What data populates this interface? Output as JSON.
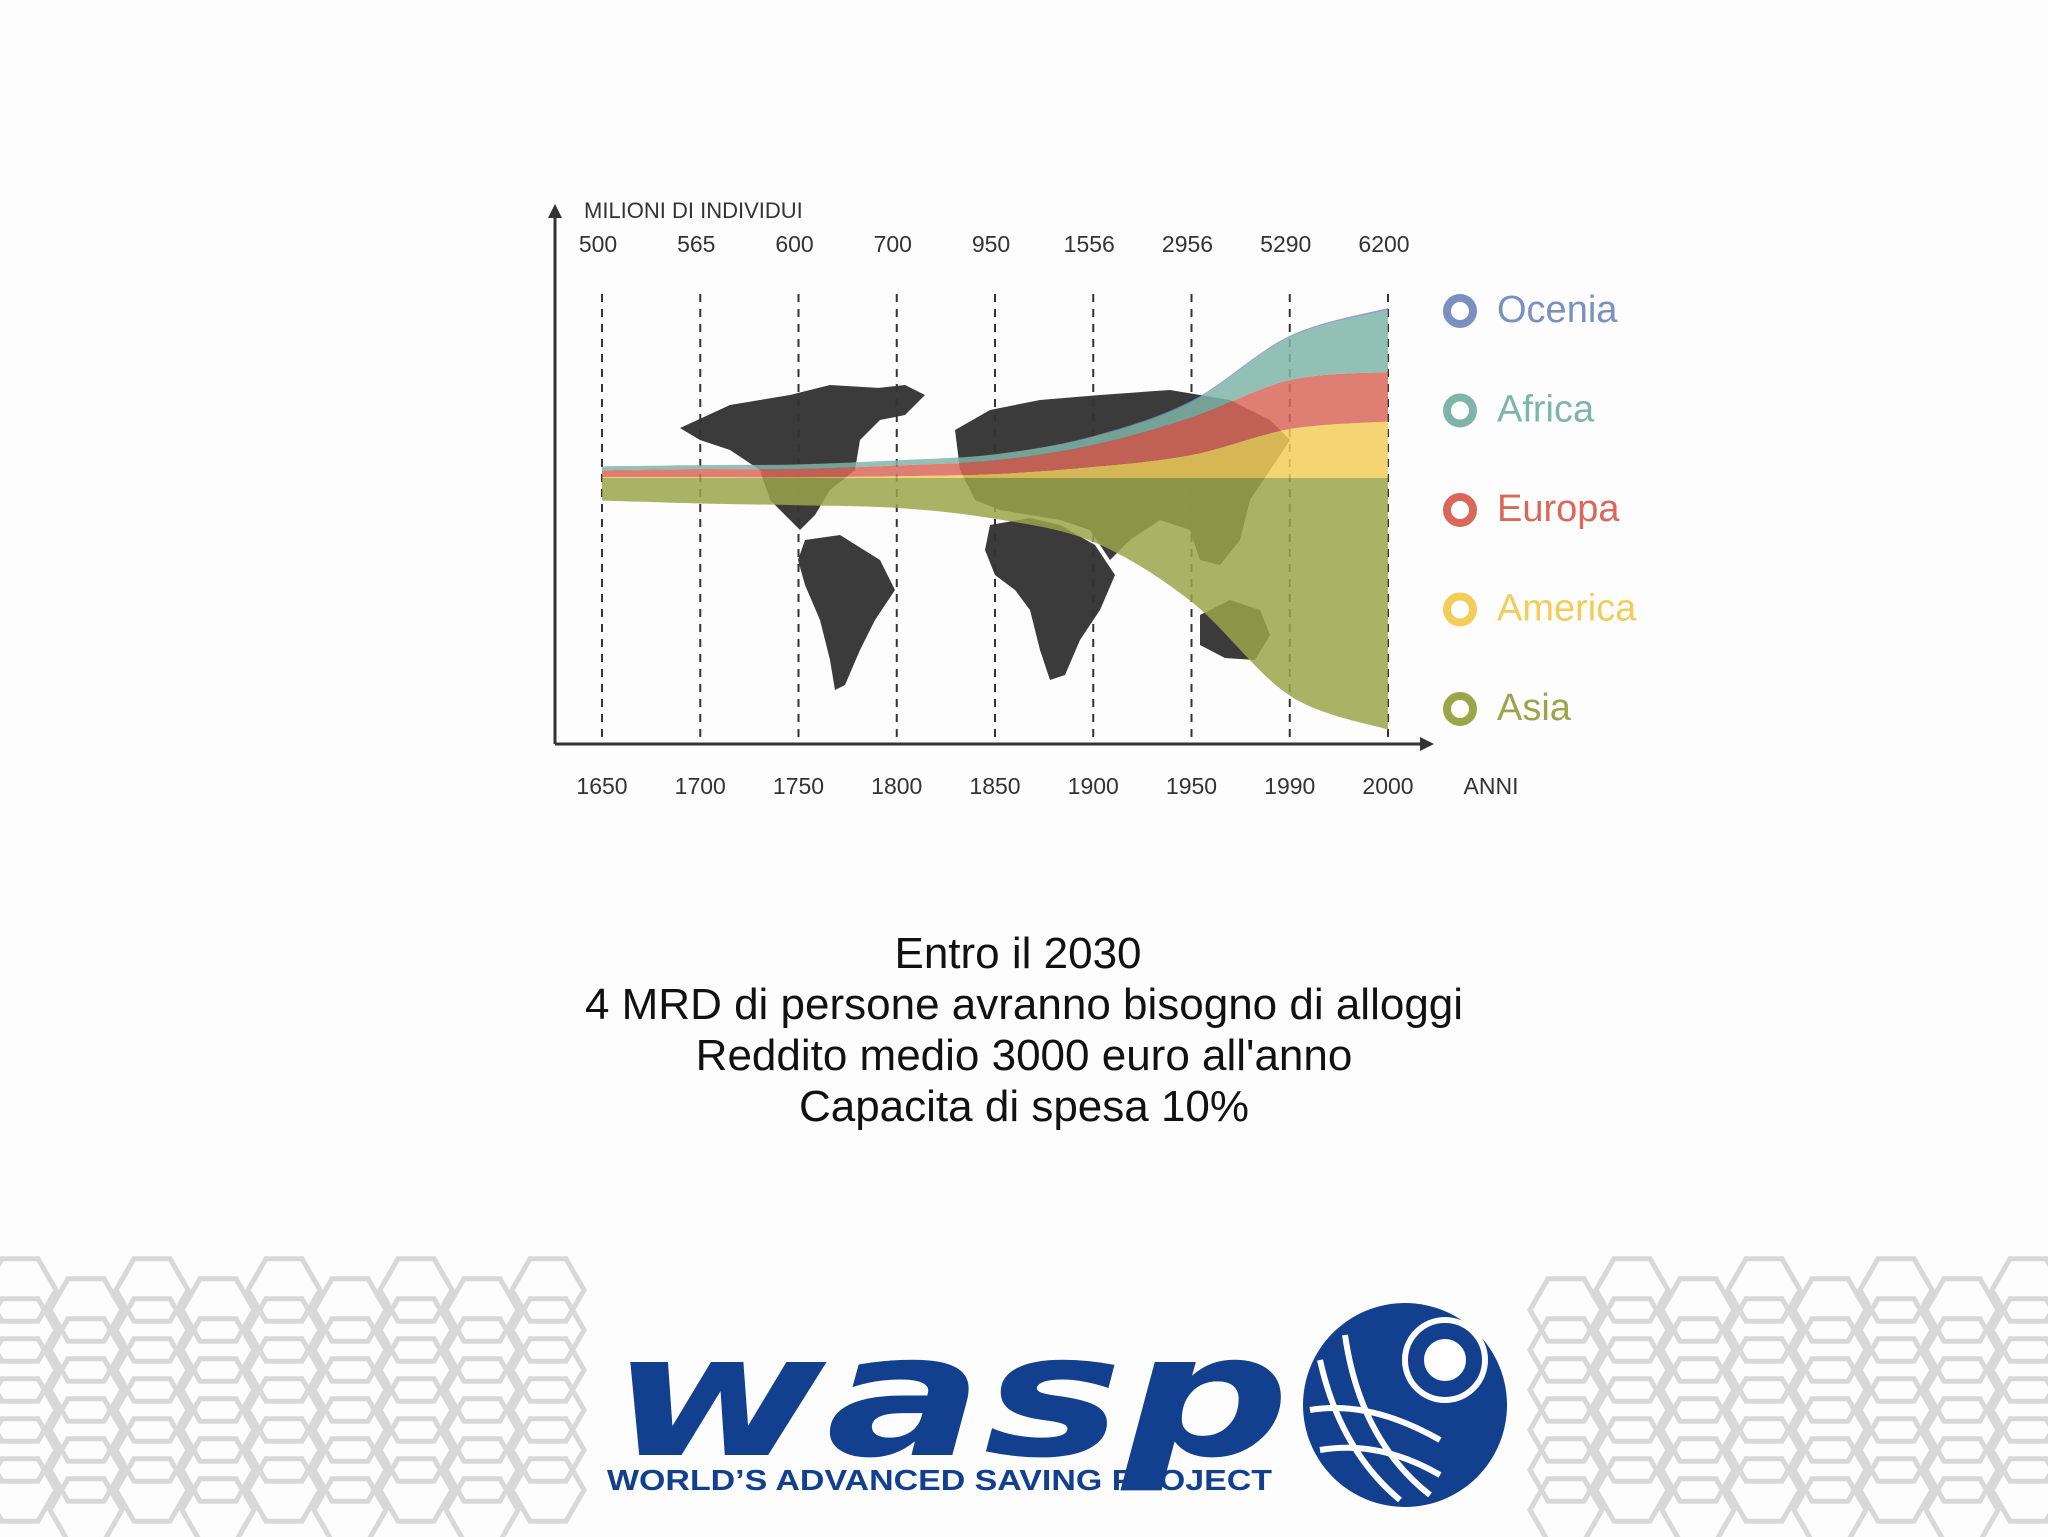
{
  "chart_data": {
    "type": "stream",
    "y_label": "MILIONI DI INDIVIDUI",
    "x_label": "ANNI",
    "categories": [
      "1650",
      "1700",
      "1750",
      "1800",
      "1850",
      "1900",
      "1950",
      "1990",
      "2000"
    ],
    "totals": [
      500,
      565,
      600,
      700,
      950,
      1556,
      2956,
      5290,
      6200
    ],
    "series": [
      {
        "name": "Ocenia",
        "color": "#7b8fc0",
        "values": [
          2,
          2,
          2,
          2,
          2,
          6,
          16,
          20,
          30
        ]
      },
      {
        "name": "Africa",
        "color": "#7fb5a8",
        "values": [
          55,
          56,
          65,
          73,
          88,
          125,
          230,
          630,
          910
        ]
      },
      {
        "name": "Europa",
        "color": "#d9685a",
        "values": [
          100,
          120,
          120,
          160,
          200,
          320,
          550,
          720,
          730
        ]
      },
      {
        "name": "America",
        "color": "#f2cd5a",
        "values": [
          13,
          12,
          13,
          25,
          60,
          165,
          340,
          720,
          830
        ]
      },
      {
        "name": "Asia",
        "color": "#9aa64a",
        "values": [
          330,
          375,
          400,
          440,
          600,
          940,
          1820,
          3200,
          3700
        ]
      }
    ]
  },
  "caption": [
    "Entro il 2030",
    "4 MRD di persone avranno bisogno di alloggi",
    "Reddito medio 3000 euro all'anno",
    "Capacita di spesa 10%"
  ],
  "logo": {
    "name": "wasp",
    "tagline": "WORLD’S ADVANCED SAVING PROJECT"
  }
}
